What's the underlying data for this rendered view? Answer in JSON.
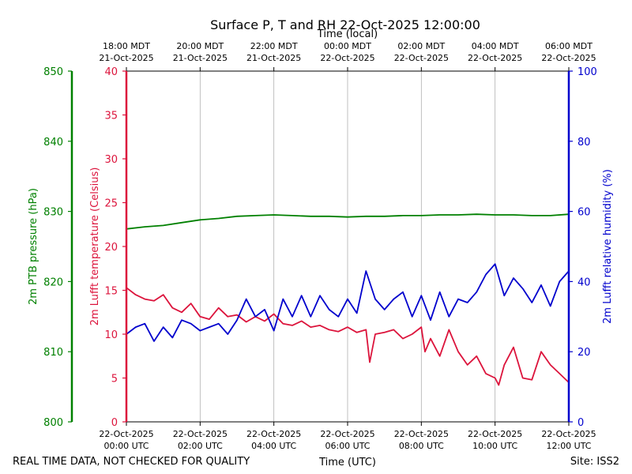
{
  "chart_data": {
    "type": "line",
    "title": "Surface P, T and RH 22-Oct-2025 12:00:00",
    "xlabel_bottom": "Time (UTC)",
    "xlabel_top": "Time (local)",
    "x_ticks_utc": [
      {
        "line1": "22-Oct-2025",
        "line2": "00:00 UTC"
      },
      {
        "line1": "22-Oct-2025",
        "line2": "02:00 UTC"
      },
      {
        "line1": "22-Oct-2025",
        "line2": "04:00 UTC"
      },
      {
        "line1": "22-Oct-2025",
        "line2": "06:00 UTC"
      },
      {
        "line1": "22-Oct-2025",
        "line2": "08:00 UTC"
      },
      {
        "line1": "22-Oct-2025",
        "line2": "10:00 UTC"
      },
      {
        "line1": "22-Oct-2025",
        "line2": "12:00 UTC"
      }
    ],
    "x_ticks_local": [
      {
        "line1": "18:00 MDT",
        "line2": "21-Oct-2025"
      },
      {
        "line1": "20:00 MDT",
        "line2": "21-Oct-2025"
      },
      {
        "line1": "22:00 MDT",
        "line2": "21-Oct-2025"
      },
      {
        "line1": "00:00 MDT",
        "line2": "22-Oct-2025"
      },
      {
        "line1": "02:00 MDT",
        "line2": "22-Oct-2025"
      },
      {
        "line1": "04:00 MDT",
        "line2": "22-Oct-2025"
      },
      {
        "line1": "06:00 MDT",
        "line2": "22-Oct-2025"
      }
    ],
    "xlim_hours": [
      0,
      12
    ],
    "axes": {
      "pressure": {
        "label": "2m PTB pressure (hPa)",
        "ylim": [
          800,
          850
        ],
        "ticks": [
          "800",
          "810",
          "820",
          "830",
          "840",
          "850"
        ],
        "color": "#008000"
      },
      "temperature": {
        "label": "2m Lufft temperature (Celsius)",
        "ylim": [
          0,
          40
        ],
        "ticks": [
          "0",
          "5",
          "10",
          "15",
          "20",
          "25",
          "30",
          "35",
          "40"
        ],
        "color": "#dc143c"
      },
      "humidity": {
        "label": "2m Lufft relative humidity (%)",
        "ylim": [
          0,
          100
        ],
        "ticks": [
          "0",
          "20",
          "40",
          "60",
          "80",
          "100"
        ],
        "color": "#0000cd"
      }
    },
    "series": [
      {
        "name": "pressure",
        "axis": "pressure",
        "color": "#008000",
        "x": [
          0,
          0.5,
          1,
          1.5,
          2,
          2.5,
          3,
          3.5,
          4,
          4.5,
          5,
          5.5,
          6,
          6.5,
          7,
          7.5,
          8,
          8.5,
          9,
          9.5,
          10,
          10.5,
          11,
          11.5,
          12
        ],
        "values": [
          827.5,
          827.8,
          828.0,
          828.4,
          828.8,
          829.0,
          829.3,
          829.4,
          829.5,
          829.4,
          829.3,
          829.3,
          829.2,
          829.3,
          829.3,
          829.4,
          829.4,
          829.5,
          829.5,
          829.6,
          829.5,
          829.5,
          829.4,
          829.4,
          829.6
        ]
      },
      {
        "name": "temperature",
        "axis": "temperature",
        "color": "#dc143c",
        "x": [
          0,
          0.25,
          0.5,
          0.75,
          1,
          1.25,
          1.5,
          1.75,
          2,
          2.25,
          2.5,
          2.75,
          3,
          3.25,
          3.5,
          3.75,
          4,
          4.25,
          4.5,
          4.75,
          5,
          5.25,
          5.5,
          5.75,
          6,
          6.25,
          6.5,
          6.6,
          6.75,
          7,
          7.25,
          7.5,
          7.75,
          8,
          8.1,
          8.25,
          8.5,
          8.75,
          9,
          9.25,
          9.5,
          9.75,
          10,
          10.1,
          10.25,
          10.5,
          10.75,
          11,
          11.25,
          11.5,
          11.75,
          12
        ],
        "values": [
          15.3,
          14.5,
          14.0,
          13.8,
          14.5,
          13.0,
          12.5,
          13.5,
          12.0,
          11.7,
          13.0,
          12.0,
          12.2,
          11.4,
          12.0,
          11.5,
          12.3,
          11.2,
          11.0,
          11.5,
          10.8,
          11.0,
          10.5,
          10.3,
          10.8,
          10.2,
          10.5,
          6.8,
          10.0,
          10.2,
          10.5,
          9.5,
          10.0,
          10.8,
          8.0,
          9.5,
          7.5,
          10.5,
          8.0,
          6.5,
          7.5,
          5.5,
          5.0,
          4.2,
          6.5,
          8.5,
          5.0,
          4.8,
          8.0,
          6.5,
          5.5,
          4.5
        ]
      },
      {
        "name": "humidity",
        "axis": "humidity",
        "color": "#0000cd",
        "x": [
          0,
          0.25,
          0.5,
          0.75,
          1,
          1.25,
          1.5,
          1.75,
          2,
          2.25,
          2.5,
          2.75,
          3,
          3.25,
          3.5,
          3.75,
          4,
          4.25,
          4.5,
          4.75,
          5,
          5.25,
          5.5,
          5.75,
          6,
          6.25,
          6.5,
          6.75,
          7,
          7.25,
          7.5,
          7.75,
          8,
          8.25,
          8.5,
          8.75,
          9,
          9.25,
          9.5,
          9.75,
          10,
          10.25,
          10.5,
          10.75,
          11,
          11.25,
          11.5,
          11.75,
          12
        ],
        "values": [
          25,
          27,
          28,
          23,
          27,
          24,
          29,
          28,
          26,
          27,
          28,
          25,
          29,
          35,
          30,
          32,
          26,
          35,
          30,
          36,
          30,
          36,
          32,
          30,
          35,
          31,
          43,
          35,
          32,
          35,
          37,
          30,
          36,
          29,
          37,
          30,
          35,
          34,
          37,
          42,
          45,
          36,
          41,
          38,
          34,
          39,
          33,
          40,
          43
        ]
      }
    ],
    "grid": "vertical",
    "legend": "none"
  },
  "footer": {
    "left": "REAL TIME DATA, NOT CHECKED FOR QUALITY",
    "right": "Site: ISS2"
  }
}
